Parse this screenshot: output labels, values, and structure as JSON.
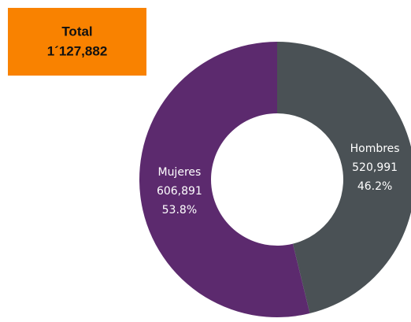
{
  "chart_data": {
    "type": "donut",
    "categories": [
      "Hombres",
      "Mujeres"
    ],
    "values": [
      520991,
      606891
    ],
    "value_labels": [
      "520,991",
      "606,891"
    ],
    "percent_labels": [
      "46.2%",
      "53.8%"
    ],
    "colors": [
      "#4a5155",
      "#5c2a6e"
    ],
    "total_title": "Total",
    "total_label": "1´127,882"
  }
}
